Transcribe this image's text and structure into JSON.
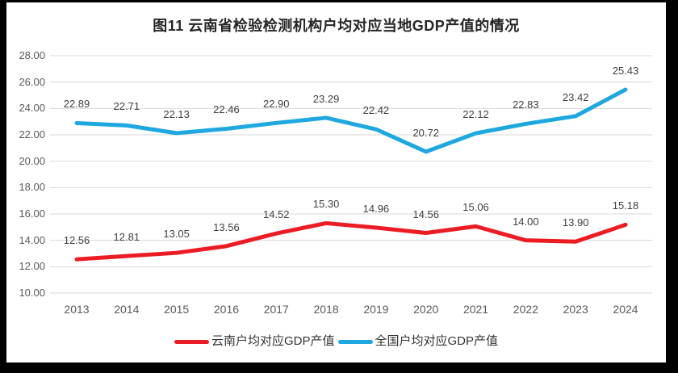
{
  "frame": {
    "border_color": "#000000",
    "paper_color": "#ffffff"
  },
  "chart_data": {
    "type": "line",
    "title": "图11 云南省检验检测机构户均对应当地GDP产值的情况",
    "x": [
      "2013",
      "2014",
      "2015",
      "2016",
      "2017",
      "2018",
      "2019",
      "2020",
      "2021",
      "2022",
      "2023",
      "2024"
    ],
    "series": [
      {
        "name": "云南户均对应GDP产值",
        "color": "#EC1C24",
        "values": [
          12.56,
          12.81,
          13.05,
          13.56,
          14.52,
          15.3,
          14.96,
          14.56,
          15.06,
          14.0,
          13.9,
          15.18
        ]
      },
      {
        "name": "全国户均对应GDP产值",
        "color": "#1FA8DF",
        "values": [
          22.89,
          22.71,
          22.13,
          22.46,
          22.9,
          23.29,
          22.42,
          20.72,
          22.12,
          22.83,
          23.42,
          25.43
        ]
      }
    ],
    "ylim": [
      10,
      28
    ],
    "ytick_step": 2,
    "ytick_labels_top_to_bottom": [
      "28.00",
      "26.00",
      "24.00",
      "22.00",
      "20.00",
      "18.00",
      "16.00",
      "14.00",
      "12.00",
      "10.00"
    ],
    "grid": "horizontal",
    "gridline_color": "#D9D9D9",
    "axis_label_color": "#595959",
    "data_label_color": "#404040",
    "data_label_decimals": 2,
    "legend_position": "bottom",
    "line_width": 5
  }
}
